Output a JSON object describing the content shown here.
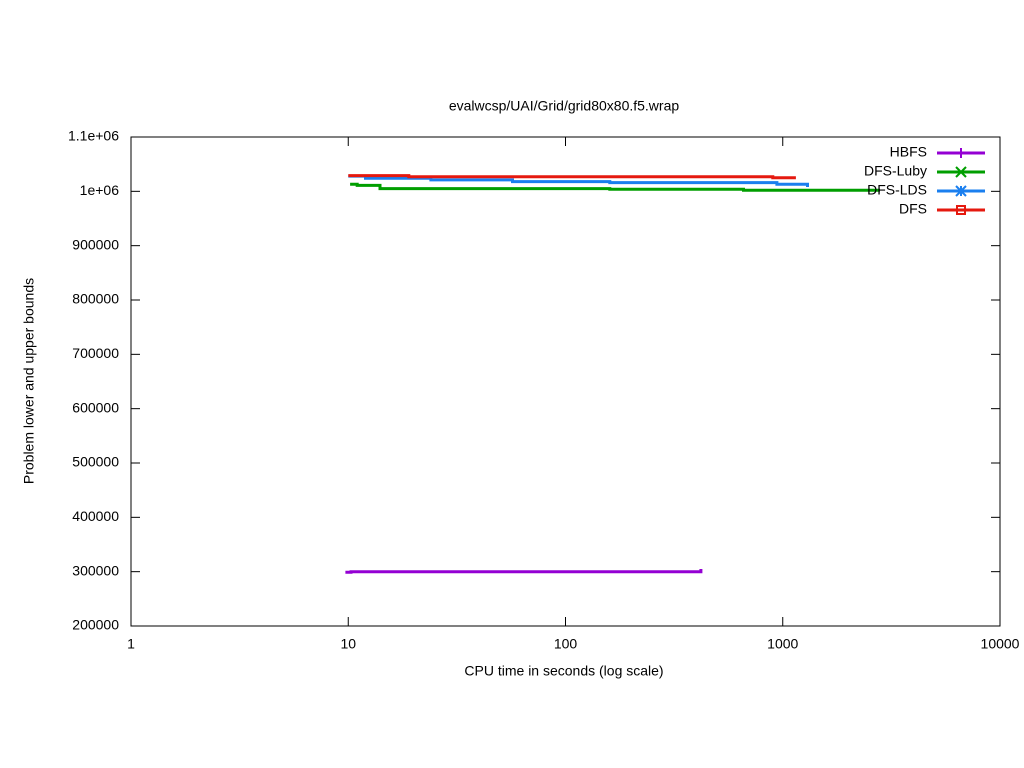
{
  "chart_data": {
    "type": "line",
    "title": "evalwcsp/UAI/Grid/grid80x80.f5.wrap",
    "x_label": "CPU time in seconds (log scale)",
    "y_label": "Problem lower and upper bounds",
    "x_log": true,
    "xlim": [
      1,
      10000
    ],
    "xticks": [
      1,
      10,
      100,
      1000,
      10000
    ],
    "ylim": [
      200000,
      1100000
    ],
    "yticks": [
      200000,
      300000,
      400000,
      500000,
      600000,
      700000,
      800000,
      900000,
      {
        "value": 1000000,
        "label": "1e+06"
      },
      {
        "value": 1100000,
        "label": "1.1e+06"
      }
    ],
    "legend": "top-right",
    "series": [
      {
        "name": "HBFS",
        "color": "#9400d3",
        "marker": "plus",
        "x": [
          9.7,
          10.3,
          10.3,
          420,
          420
        ],
        "values": [
          299000,
          299000,
          300000,
          300000,
          305000
        ]
      },
      {
        "name": "DFS-Luby",
        "color": "#009e00",
        "marker": "cross",
        "x": [
          10.2,
          11,
          11,
          14,
          14,
          160,
          160,
          660,
          660,
          2800
        ],
        "values": [
          1013000,
          1013000,
          1011000,
          1011000,
          1005000,
          1005000,
          1004000,
          1004000,
          1002000,
          1002000
        ]
      },
      {
        "name": "DFS-LDS",
        "color": "#1a7fef",
        "marker": "star",
        "x": [
          10,
          12,
          12,
          24,
          24,
          57,
          57,
          160,
          160,
          940,
          940,
          1300,
          1300
        ],
        "values": [
          1028000,
          1028000,
          1024000,
          1024000,
          1021000,
          1021000,
          1018000,
          1018000,
          1016000,
          1016000,
          1013000,
          1013000,
          1008000
        ]
      },
      {
        "name": "DFS",
        "color": "#e5190f",
        "marker": "square",
        "x": [
          10,
          19,
          19,
          900,
          900,
          1150
        ],
        "values": [
          1029000,
          1029000,
          1027000,
          1027000,
          1025000,
          1025000
        ]
      }
    ]
  }
}
